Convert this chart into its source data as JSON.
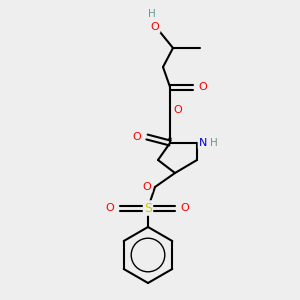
{
  "background_color": "#eeeeee",
  "bond_color": "#000000",
  "atom_colors": {
    "O": "#ff0000",
    "N": "#0000cc",
    "S": "#cccc00",
    "H_gray": "#669999",
    "C": "#000000"
  },
  "figsize": [
    3.0,
    3.0
  ],
  "dpi": 100
}
